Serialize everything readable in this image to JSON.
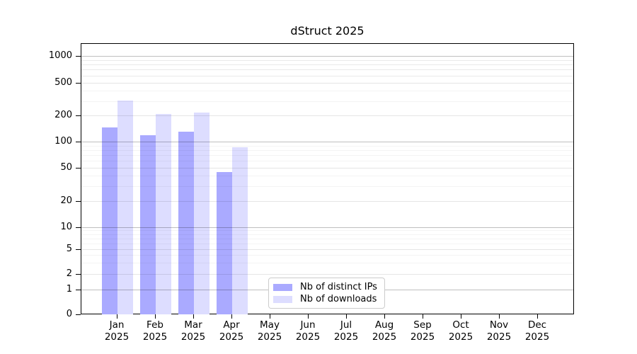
{
  "chart_data": {
    "type": "bar",
    "title": "dStruct 2025",
    "categories": [
      "Jan 2025",
      "Feb 2025",
      "Mar 2025",
      "Apr 2025",
      "May 2025",
      "Jun 2025",
      "Jul 2025",
      "Aug 2025",
      "Sep 2025",
      "Oct 2025",
      "Nov 2025",
      "Dec 2025"
    ],
    "series": [
      {
        "name": "Nb of distinct IPs",
        "color": "#aaaaff",
        "values": [
          150,
          120,
          133,
          45,
          null,
          null,
          null,
          null,
          null,
          null,
          null,
          null
        ]
      },
      {
        "name": "Nb of downloads",
        "color": "#ddddff",
        "values": [
          310,
          215,
          220,
          88,
          null,
          null,
          null,
          null,
          null,
          null,
          null,
          null
        ]
      }
    ],
    "xlabel": "",
    "ylabel": "",
    "yscale": "symlog",
    "yticks": [
      0,
      1,
      2,
      5,
      10,
      20,
      50,
      100,
      200,
      500,
      1000
    ],
    "ylim": [
      0,
      1400
    ],
    "grid": true,
    "grid_over_bars": true,
    "legend_position": "inside-bottom-center",
    "colors": {
      "bar_distinct_ips": "#aaaaff",
      "bar_downloads": "#ddddff",
      "grid_major": "#c0c0c0",
      "grid_mid": "#e6e6e6",
      "grid_minor": "#f4f4f4",
      "spine": "#000000",
      "legend_border": "#cccccc"
    }
  }
}
